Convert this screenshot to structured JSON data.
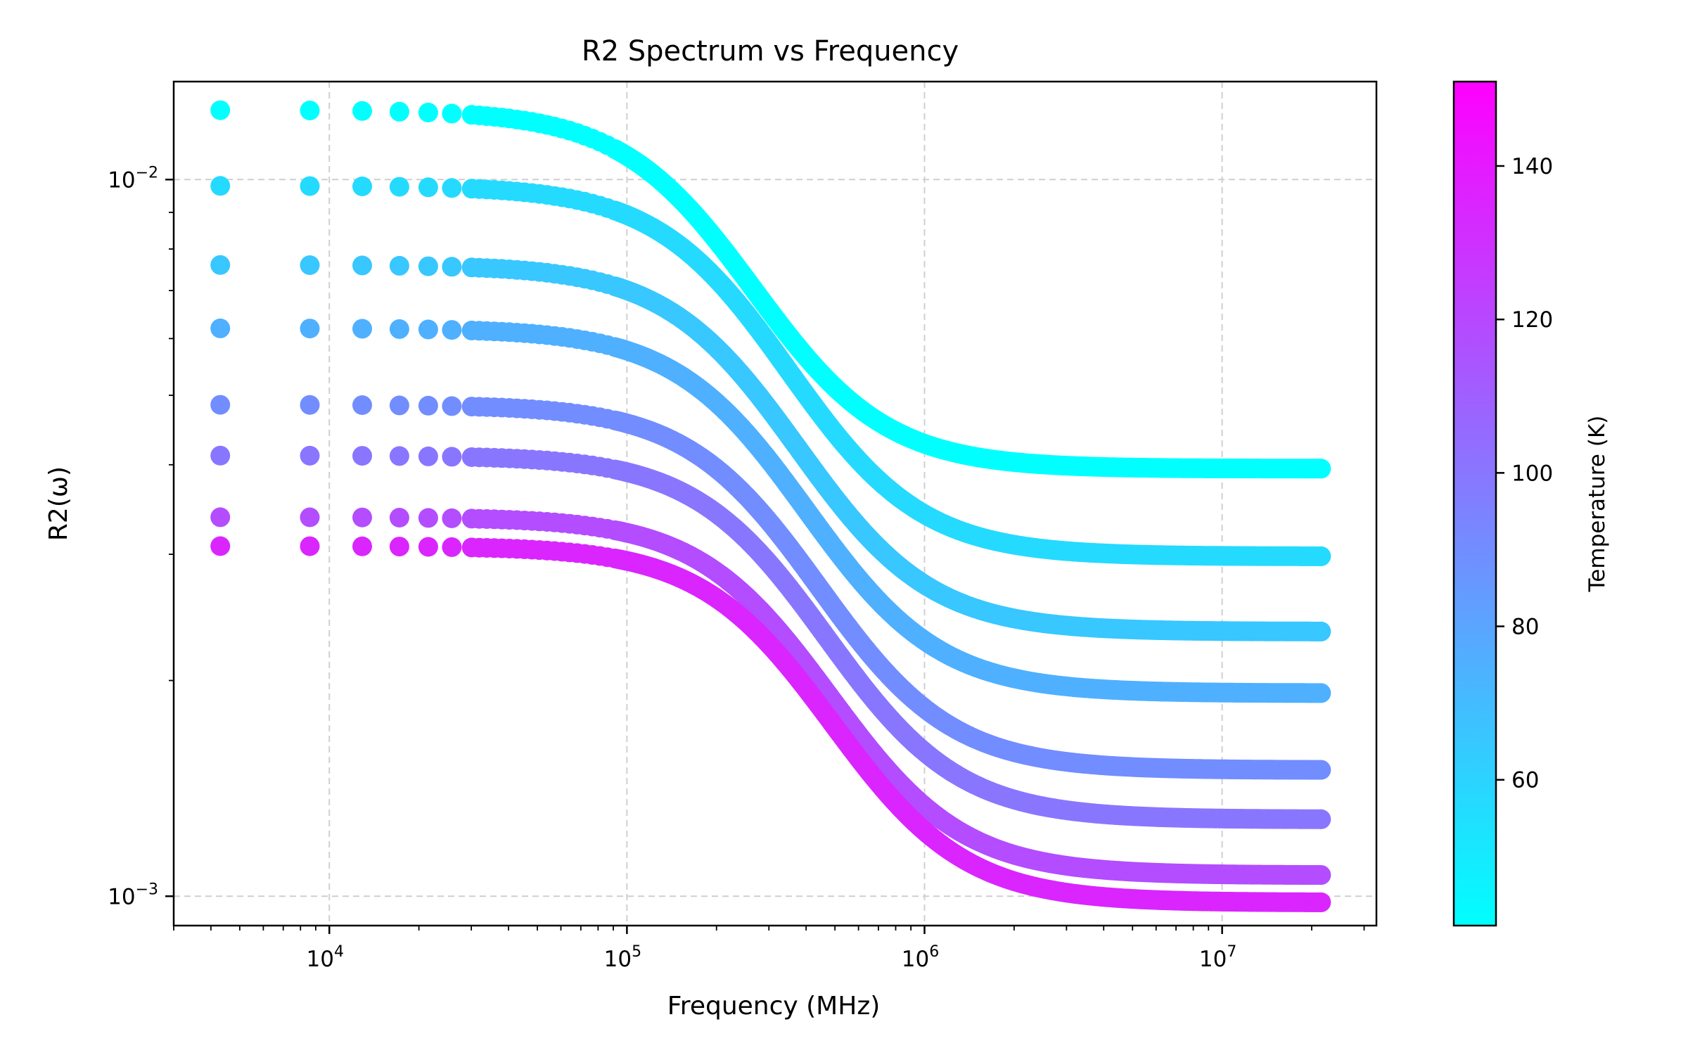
{
  "chart_data": {
    "type": "scatter",
    "title": "R2 Spectrum vs Frequency",
    "xlabel": "Frequency (MHz)",
    "ylabel": "R2(ω)",
    "xscale": "log",
    "yscale": "log",
    "xlim": [
      3000,
      33000000
    ],
    "ylim": [
      0.00091,
      0.0137
    ],
    "grid": true,
    "x_ticks": [
      {
        "value": 10000,
        "base": "10",
        "exp": "4"
      },
      {
        "value": 100000,
        "base": "10",
        "exp": "5"
      },
      {
        "value": 1000000,
        "base": "10",
        "exp": "6"
      },
      {
        "value": 10000000,
        "base": "10",
        "exp": "7"
      }
    ],
    "y_ticks": [
      {
        "value": 0.001,
        "base": "10",
        "exp": "−3"
      },
      {
        "value": 0.01,
        "base": "10",
        "exp": "−2"
      }
    ],
    "colorbar": {
      "label": "Temperature (K)",
      "range": [
        41,
        151
      ],
      "ticks": [
        {
          "value": 60,
          "label": "60"
        },
        {
          "value": 80,
          "label": "80"
        },
        {
          "value": 100,
          "label": "100"
        },
        {
          "value": 120,
          "label": "120"
        },
        {
          "value": 140,
          "label": "140"
        }
      ],
      "colormap": "cool",
      "color_low": "#00ffff",
      "color_high": "#ff00ff"
    },
    "frequency_range": [
      4300,
      21500000
    ],
    "series": [
      {
        "temperature": 41,
        "low_value": 0.0125,
        "high_value": 0.00395,
        "f_center": 200000
      },
      {
        "temperature": 57,
        "low_value": 0.0098,
        "high_value": 0.00298,
        "f_center": 260000
      },
      {
        "temperature": 65,
        "low_value": 0.0076,
        "high_value": 0.00234,
        "f_center": 280000
      },
      {
        "temperature": 75,
        "low_value": 0.0062,
        "high_value": 0.00192,
        "f_center": 300000
      },
      {
        "temperature": 90,
        "low_value": 0.00485,
        "high_value": 0.0015,
        "f_center": 330000
      },
      {
        "temperature": 100,
        "low_value": 0.00412,
        "high_value": 0.00128,
        "f_center": 350000
      },
      {
        "temperature": 118,
        "low_value": 0.00338,
        "high_value": 0.00107,
        "f_center": 360000
      },
      {
        "temperature": 135,
        "low_value": 0.00308,
        "high_value": 0.00098,
        "f_center": 370000
      }
    ]
  }
}
